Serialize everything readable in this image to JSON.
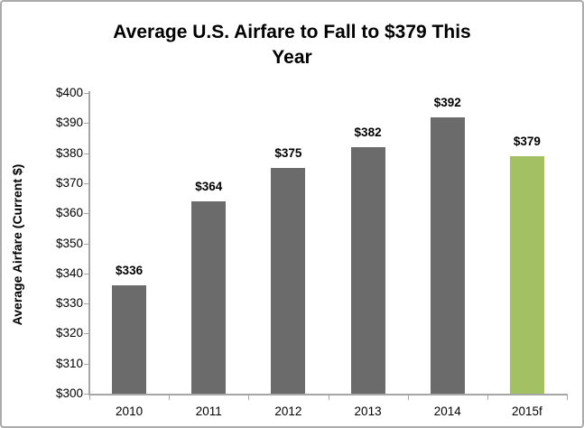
{
  "chart_data": {
    "type": "bar",
    "title": "Average U.S. Airfare to Fall to $379 This Year",
    "title_lines": [
      "Average U.S. Airfare to Fall to $379 This",
      "Year"
    ],
    "ylabel": "Average Airfare (Current $)",
    "xlabel": "",
    "categories": [
      "2010",
      "2011",
      "2012",
      "2013",
      "2014",
      "2015f"
    ],
    "values": [
      336,
      364,
      375,
      382,
      392,
      379
    ],
    "data_labels": [
      "$336",
      "$364",
      "$375",
      "$382",
      "$392",
      "$379"
    ],
    "ylim": [
      300,
      400
    ],
    "ytick_step": 10,
    "ytick_labels": [
      "$300",
      "$310",
      "$320",
      "$330",
      "$340",
      "$350",
      "$360",
      "$370",
      "$380",
      "$390",
      "$400"
    ],
    "bar_colors": [
      "#6b6b6b",
      "#6b6b6b",
      "#6b6b6b",
      "#6b6b6b",
      "#6b6b6b",
      "#a3c162"
    ],
    "grid": false,
    "legend": false
  },
  "colors": {
    "bar_default": "#6b6b6b",
    "bar_highlight": "#a3c162",
    "axis_line": "#a6a6a6",
    "text": "#000000",
    "frame_border": "#ababab"
  }
}
